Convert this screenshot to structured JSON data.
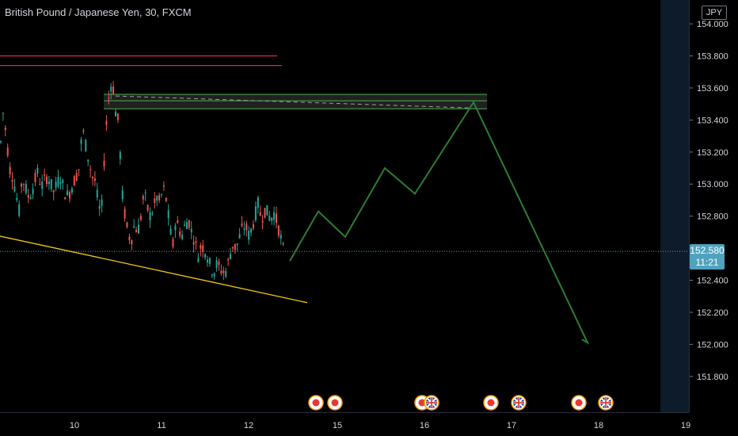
{
  "header": {
    "title": "British Pound / Japanese Yen, 30, FXCM"
  },
  "axis": {
    "currency": "JPY",
    "current_price": "152.580",
    "countdown": "11:21"
  },
  "colors": {
    "up": "#26a69a",
    "down": "#ef5350",
    "resistance": "#e91e63",
    "trendline": "#f5c518",
    "projection": "#2e7d32",
    "zone": "#4caf50",
    "current_line": "#4fa3bf",
    "future_shade": "#0d1b2a"
  },
  "events": [
    "red-dot",
    "red-dot",
    "red-dot",
    "uk-flag",
    "red-dot",
    "uk-flag",
    "red-dot",
    "uk-flag"
  ],
  "chart_data": {
    "type": "candlestick",
    "title": "British Pound / Japanese Yen, 30, FXCM",
    "x_ticks": [
      "10",
      "11",
      "12",
      "15",
      "16",
      "17",
      "18",
      "19"
    ],
    "y_ticks": [
      "154.000",
      "153.800",
      "153.600",
      "153.400",
      "153.200",
      "153.000",
      "152.800",
      "152.400",
      "152.200",
      "152.000",
      "151.800"
    ],
    "ylim": [
      151.7,
      154.05
    ],
    "grid": false,
    "current_price": 152.58,
    "price_path": [
      [
        0,
        153.2
      ],
      [
        4,
        153.45
      ],
      [
        8,
        153.3
      ],
      [
        12,
        153.1
      ],
      [
        16,
        153.05
      ],
      [
        20,
        152.95
      ],
      [
        24,
        152.82
      ],
      [
        28,
        153.05
      ],
      [
        32,
        152.98
      ],
      [
        36,
        152.92
      ],
      [
        40,
        152.95
      ],
      [
        44,
        153.02
      ],
      [
        48,
        153.08
      ],
      [
        52,
        152.98
      ],
      [
        56,
        153.02
      ],
      [
        60,
        153.05
      ],
      [
        64,
        153.0
      ],
      [
        68,
        152.95
      ],
      [
        72,
        153.0
      ],
      [
        76,
        153.05
      ],
      [
        80,
        152.98
      ],
      [
        84,
        152.92
      ],
      [
        88,
        152.95
      ],
      [
        92,
        153.0
      ],
      [
        96,
        153.05
      ],
      [
        100,
        153.1
      ],
      [
        104,
        153.35
      ],
      [
        108,
        153.25
      ],
      [
        112,
        153.15
      ],
      [
        116,
        153.05
      ],
      [
        120,
        153.02
      ],
      [
        124,
        152.88
      ],
      [
        128,
        152.8
      ],
      [
        132,
        153.2
      ],
      [
        136,
        153.5
      ],
      [
        140,
        153.62
      ],
      [
        143,
        153.6
      ],
      [
        146,
        153.45
      ],
      [
        150,
        153.38
      ],
      [
        154,
        152.95
      ],
      [
        158,
        152.8
      ],
      [
        162,
        152.68
      ],
      [
        166,
        152.66
      ],
      [
        170,
        152.75
      ],
      [
        174,
        152.7
      ],
      [
        178,
        152.8
      ],
      [
        182,
        152.95
      ],
      [
        186,
        152.85
      ],
      [
        190,
        152.8
      ],
      [
        194,
        152.85
      ],
      [
        198,
        152.92
      ],
      [
        202,
        152.88
      ],
      [
        206,
        152.98
      ],
      [
        210,
        152.9
      ],
      [
        214,
        152.75
      ],
      [
        218,
        152.6
      ],
      [
        222,
        152.78
      ],
      [
        226,
        152.72
      ],
      [
        230,
        152.68
      ],
      [
        234,
        152.75
      ],
      [
        238,
        152.78
      ],
      [
        242,
        152.7
      ],
      [
        246,
        152.65
      ],
      [
        250,
        152.55
      ],
      [
        254,
        152.62
      ],
      [
        258,
        152.6
      ],
      [
        262,
        152.55
      ],
      [
        266,
        152.48
      ],
      [
        270,
        152.45
      ],
      [
        274,
        152.5
      ],
      [
        278,
        152.47
      ],
      [
        282,
        152.45
      ],
      [
        286,
        152.46
      ],
      [
        290,
        152.55
      ],
      [
        294,
        152.62
      ],
      [
        298,
        152.6
      ],
      [
        302,
        152.66
      ],
      [
        306,
        152.72
      ],
      [
        310,
        152.74
      ],
      [
        314,
        152.68
      ],
      [
        318,
        152.72
      ],
      [
        322,
        152.8
      ],
      [
        326,
        152.88
      ],
      [
        330,
        152.78
      ],
      [
        334,
        152.84
      ],
      [
        338,
        152.82
      ],
      [
        342,
        152.78
      ],
      [
        346,
        152.82
      ],
      [
        350,
        152.76
      ],
      [
        354,
        152.68
      ],
      [
        358,
        152.58
      ]
    ],
    "resistance_lines": [
      {
        "x": [
          0,
          350
        ],
        "price": 153.8
      },
      {
        "x": [
          0,
          356
        ],
        "price": 153.74
      }
    ],
    "supply_zone": {
      "x": [
        131,
        615
      ],
      "upper": 153.56,
      "mid": 153.52,
      "lower": 153.47
    },
    "support_trendline": {
      "from": [
        0,
        152.675
      ],
      "to": [
        388,
        152.26
      ]
    },
    "projection": [
      [
        366,
        152.52
      ],
      [
        402,
        152.83
      ],
      [
        436,
        152.67
      ],
      [
        486,
        153.1
      ],
      [
        524,
        152.94
      ],
      [
        598,
        153.51
      ],
      [
        742,
        152.01
      ],
      [
        735,
        152.03
      ]
    ]
  }
}
